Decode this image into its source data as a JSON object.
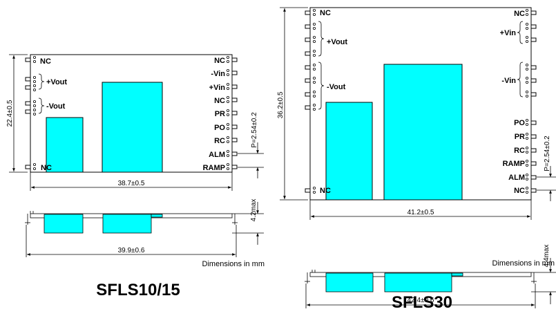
{
  "left": {
    "title": "SFLS10/15",
    "pins_left": [
      "NC",
      "+Vout",
      "-Vout",
      "NC"
    ],
    "pins_right": [
      "NC",
      "-Vin",
      "+Vin",
      "NC",
      "PR",
      "PO",
      "RC",
      "ALM",
      "RAMP"
    ],
    "height": "22.4±0.5",
    "width": "38.7±0.5",
    "pitch": "P=2.54±0.2",
    "side_width": "39.9±0.6",
    "max_height": "4.2max",
    "units": "Dimensions in mm"
  },
  "right": {
    "title": "SFLS30",
    "pins_left": [
      "NC",
      "+Vout",
      "-Vout",
      "NC"
    ],
    "pins_right": [
      "NC",
      "+Vin",
      "-Vin",
      "PO",
      "PR",
      "RC",
      "RAMP",
      "ALM",
      "NC"
    ],
    "height": "36.2±0.5",
    "width": "41.2±0.5",
    "pitch": "P=2.54±0.2",
    "side_width": "42.4±0.6",
    "max_height": "4.4max",
    "units": "Dimensions in mm"
  },
  "colors": {
    "component": "#00ffff",
    "line": "#000000"
  }
}
